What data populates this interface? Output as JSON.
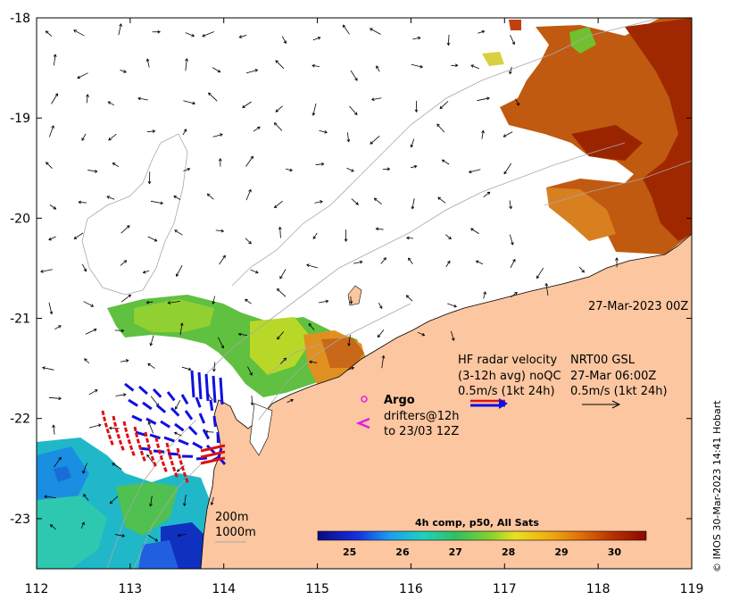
{
  "map": {
    "lon_min": 112,
    "lon_max": 119,
    "lat_min": -23.5,
    "lat_max": -18,
    "lon_ticks": [
      "112",
      "113",
      "114",
      "115",
      "116",
      "117",
      "118",
      "119"
    ],
    "lat_ticks": [
      "-18",
      "-19",
      "-20",
      "-21",
      "-22",
      "-23"
    ]
  },
  "timestamp": "27-Mar-2023 00Z",
  "legend": {
    "hf_title": "HF radar velocity",
    "hf_sub": "(3-12h avg) noQC",
    "hf_scale": "0.5m/s (1kt 24h)",
    "nrt_title": "NRT00 GSL",
    "nrt_date": "27-Mar 06:00Z",
    "nrt_scale": "0.5m/s (1kt 24h)",
    "argo": "Argo",
    "drifters_1": "drifters@12h",
    "drifters_2": "to 23/03 12Z"
  },
  "bathymetry": {
    "c200": "200m",
    "c1000": "1000m"
  },
  "colorbar": {
    "title": "4h comp, p50, All Sats",
    "min": 24.4,
    "max": 30.6,
    "ticks": [
      "25",
      "26",
      "27",
      "28",
      "29",
      "30"
    ]
  },
  "credit": "© IMOS 30-Mar-2023 14:41 Hobart",
  "colors": {
    "land": "#fbc6a0",
    "coast": "#000000",
    "contour": "#a8a8a8",
    "hf_arrow": "#1010e0",
    "drifter": "#e01010",
    "argo": "#e020e0"
  }
}
